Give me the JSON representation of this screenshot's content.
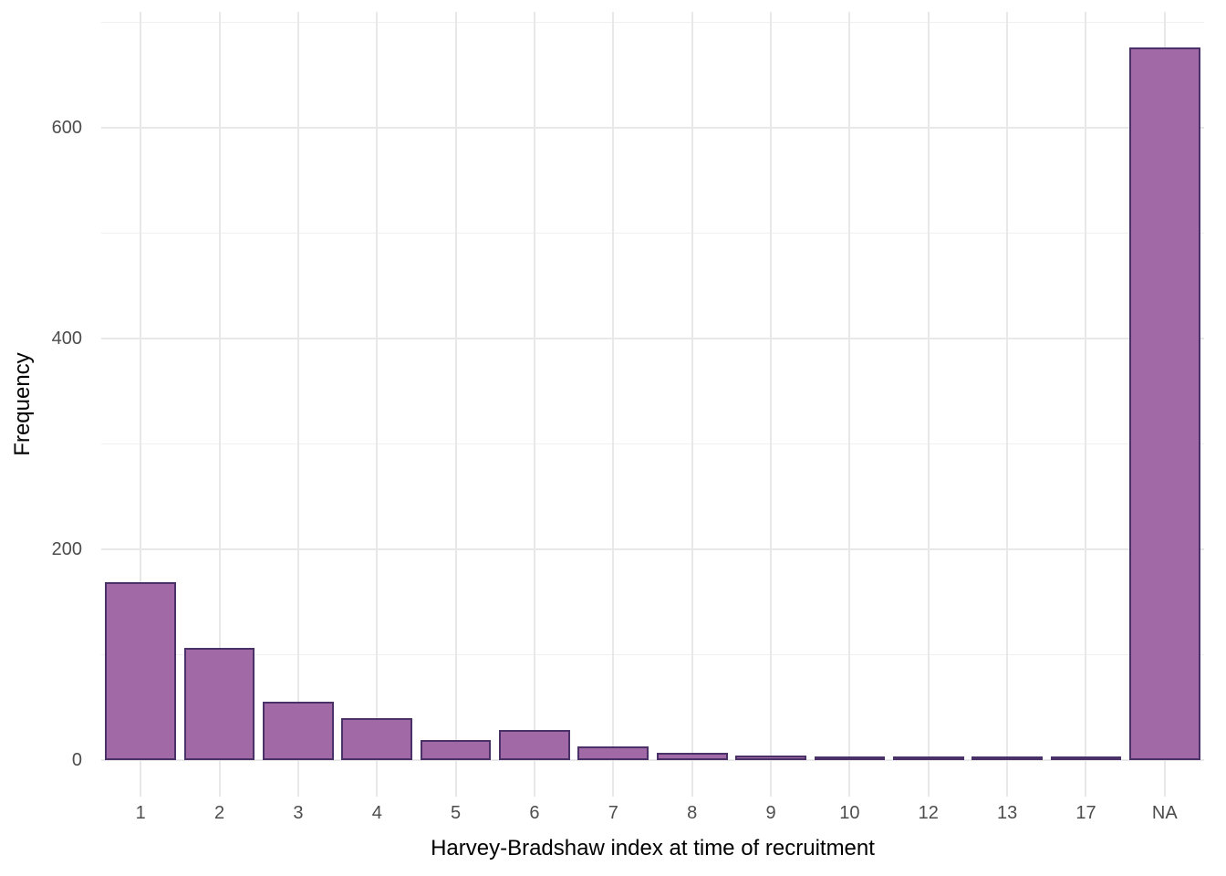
{
  "chart_data": {
    "type": "bar",
    "title": "",
    "xlabel": "Harvey-Bradshaw index at time of recruitment",
    "ylabel": "Frequency",
    "categories": [
      "1",
      "2",
      "3",
      "4",
      "5",
      "6",
      "7",
      "8",
      "9",
      "10",
      "12",
      "13",
      "17",
      "NA"
    ],
    "values": [
      169,
      107,
      56,
      40,
      19,
      29,
      13,
      7,
      5,
      3,
      2,
      2,
      3,
      676
    ],
    "yticks": [
      0,
      200,
      400,
      600
    ],
    "yticks_minor": [
      100,
      300,
      500,
      700
    ],
    "ylim": [
      0,
      710
    ],
    "grid": "on",
    "legend": "none",
    "colors": {
      "bar_fill": "#A169A6",
      "bar_stroke": "#4A3268",
      "grid_major": "#E8E8E8",
      "grid_minor": "#F0F0F0",
      "tick_label": "#4D4D4D",
      "axis_title": "#000000",
      "background": "#FFFFFF"
    }
  }
}
